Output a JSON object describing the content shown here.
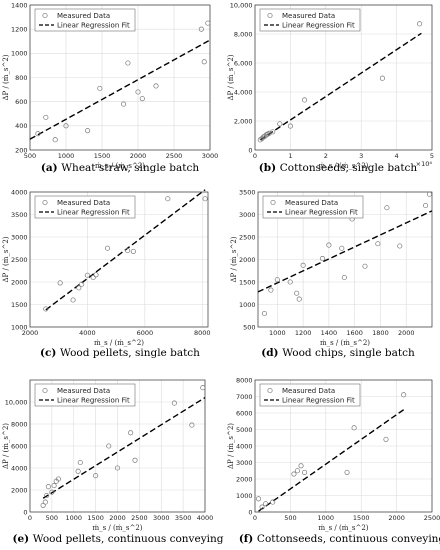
{
  "chart_data": [
    {
      "type": "scatter",
      "caption_tag": "(a)",
      "caption": "Wheat straw, single batch",
      "xlabel": "ṁ_s / (ṁ_s^2)",
      "ylabel": "ΔP / (ṁ_s^2)",
      "xlim": [
        500,
        3000
      ],
      "ylim": [
        200,
        1400
      ],
      "xticks": [
        "500",
        "1000",
        "1500",
        "2000",
        "2500",
        "3000"
      ],
      "yticks": [
        "200",
        "400",
        "600",
        "800",
        "1000",
        "1200",
        "1400"
      ],
      "xtick_vals": [
        500,
        1000,
        1500,
        2000,
        2500,
        3000
      ],
      "ytick_vals": [
        200,
        400,
        600,
        800,
        1000,
        1200,
        1400
      ],
      "exponent": "",
      "legend": {
        "measured": "Measured Data",
        "fit": "Linear Regression Fit"
      },
      "series": [
        {
          "name": "Measured Data",
          "x": [
            610,
            720,
            850,
            1000,
            1300,
            1470,
            1800,
            1860,
            2000,
            2060,
            2250,
            2880,
            2920,
            2970
          ],
          "y": [
            335,
            470,
            285,
            400,
            360,
            710,
            580,
            920,
            680,
            625,
            730,
            1200,
            930,
            1250
          ]
        },
        {
          "name": "Linear Regression Fit",
          "x": [
            500,
            3000
          ],
          "y": [
            290,
            1110
          ]
        }
      ]
    },
    {
      "type": "scatter",
      "caption_tag": "(b)",
      "caption": "Cottonseeds, single batch",
      "xlabel": "ṁ_s / (ṁ_s^2)",
      "ylabel": "ΔP / (ṁ_s^2)",
      "xlim": [
        0,
        50000
      ],
      "ylim": [
        0,
        10000
      ],
      "xticks": [
        "0",
        "1",
        "2",
        "3",
        "4",
        "5"
      ],
      "yticks": [
        "0",
        "2,000",
        "4,000",
        "6,000",
        "8,000",
        "10,000"
      ],
      "xtick_vals": [
        0,
        10000,
        20000,
        30000,
        40000,
        50000
      ],
      "ytick_vals": [
        0,
        2000,
        4000,
        6000,
        8000,
        10000
      ],
      "exponent": "×10⁴",
      "legend": {
        "measured": "Measured Data",
        "fit": "Linear Regression Fit"
      },
      "series": [
        {
          "name": "Measured Data",
          "x": [
            1500,
            2000,
            2400,
            2800,
            3200,
            3600,
            4000,
            5000,
            7000,
            10000,
            14000,
            36000,
            46500
          ],
          "y": [
            700,
            800,
            900,
            950,
            1050,
            1100,
            1150,
            1250,
            1800,
            1650,
            3450,
            4950,
            8700
          ]
        },
        {
          "name": "Linear Regression Fit",
          "x": [
            1500,
            47000
          ],
          "y": [
            700,
            8050
          ]
        }
      ]
    },
    {
      "type": "scatter",
      "caption_tag": "(c)",
      "caption": "Wood pellets, single batch",
      "xlabel": "ṁ_s / (ṁ_s^2)",
      "ylabel": "ΔP / (ṁ_s^2)",
      "xlim": [
        2000,
        8200
      ],
      "ylim": [
        1000,
        4000
      ],
      "xticks": [
        "2000",
        "4000",
        "6000",
        "8000"
      ],
      "yticks": [
        "1000",
        "1500",
        "2000",
        "2500",
        "3000",
        "3500",
        "4000"
      ],
      "xtick_vals": [
        2000,
        4000,
        6000,
        8000
      ],
      "ytick_vals": [
        1000,
        1500,
        2000,
        2500,
        3000,
        3500,
        4000
      ],
      "exponent": "",
      "legend": {
        "measured": "Measured Data",
        "fit": "Linear Regression Fit"
      },
      "series": [
        {
          "name": "Measured Data",
          "x": [
            2550,
            3050,
            3500,
            3700,
            3800,
            4000,
            4200,
            4300,
            4700,
            5400,
            5600,
            6800,
            8100
          ],
          "y": [
            1400,
            1980,
            1600,
            1870,
            1950,
            2150,
            2100,
            2160,
            2750,
            2700,
            2680,
            3850,
            3850
          ]
        },
        {
          "name": "Linear Regression Fit",
          "x": [
            2550,
            8100
          ],
          "y": [
            1380,
            4050
          ]
        }
      ]
    },
    {
      "type": "scatter",
      "caption_tag": "(d)",
      "caption": "Wood chips, single batch",
      "xlabel": "ṁ_s / (ṁ_s^2)",
      "ylabel": "ΔP / (ṁ_s^2)",
      "xlim": [
        850,
        2200
      ],
      "ylim": [
        500,
        3500
      ],
      "xticks": [
        "1000",
        "1200",
        "1400",
        "1600",
        "1800",
        "2000"
      ],
      "yticks": [
        "500",
        "1000",
        "1500",
        "2000",
        "2500",
        "3000",
        "3500"
      ],
      "xtick_vals": [
        1000,
        1200,
        1400,
        1600,
        1800,
        2000
      ],
      "ytick_vals": [
        500,
        1000,
        1500,
        2000,
        2500,
        3000,
        3500
      ],
      "exponent": "",
      "legend": {
        "measured": "Measured Data",
        "fit": "Linear Regression Fit"
      },
      "series": [
        {
          "name": "Measured Data",
          "x": [
            900,
            950,
            1000,
            1100,
            1150,
            1170,
            1200,
            1350,
            1400,
            1500,
            1520,
            1580,
            1680,
            1780,
            1850,
            1950,
            2150,
            2180
          ],
          "y": [
            800,
            1320,
            1550,
            1500,
            1250,
            1120,
            1870,
            2020,
            2320,
            2250,
            1600,
            2900,
            1850,
            2350,
            3150,
            2300,
            3200,
            3450
          ]
        },
        {
          "name": "Linear Regression Fit",
          "x": [
            850,
            2200
          ],
          "y": [
            1280,
            3080
          ]
        }
      ]
    },
    {
      "type": "scatter",
      "caption_tag": "(e)",
      "caption": "Wood pellets, continuous conveying",
      "xlabel": "ṁ_s / (ṁ_s^2)",
      "ylabel": "ΔP / (ṁ_s^2)",
      "xlim": [
        0,
        4000
      ],
      "ylim": [
        0,
        12000
      ],
      "xticks": [
        "0",
        "500",
        "1000",
        "1500",
        "2000",
        "2500",
        "3000",
        "3500",
        "4000"
      ],
      "yticks": [
        "0",
        "2000",
        "4000",
        "6000",
        "8000",
        "10,000"
      ],
      "xtick_vals": [
        0,
        500,
        1000,
        1500,
        2000,
        2500,
        3000,
        3500,
        4000
      ],
      "ytick_vals": [
        0,
        2000,
        4000,
        6000,
        8000,
        10000
      ],
      "exponent": "",
      "legend": {
        "measured": "Measured Data",
        "fit": "Linear Regression Fit"
      },
      "series": [
        {
          "name": "Measured Data",
          "x": [
            300,
            350,
            380,
            420,
            500,
            550,
            600,
            650,
            1100,
            1150,
            1500,
            1800,
            2000,
            2300,
            2400,
            3300,
            3700,
            3950
          ],
          "y": [
            600,
            900,
            1500,
            2300,
            1800,
            2400,
            2800,
            3000,
            3700,
            4500,
            3300,
            6000,
            4000,
            7200,
            4700,
            9900,
            7900,
            11300
          ]
        },
        {
          "name": "Linear Regression Fit",
          "x": [
            300,
            4000
          ],
          "y": [
            1250,
            10400
          ]
        }
      ]
    },
    {
      "type": "scatter",
      "caption_tag": "(f)",
      "caption": "Cottonseeds, continuous conveying",
      "xlabel": "ṁ_s / (ṁ_s^2)",
      "ylabel": "ΔP / (ṁ_s^2)",
      "xlim": [
        0,
        2500
      ],
      "ylim": [
        0,
        8000
      ],
      "xticks": [
        "0",
        "500",
        "1000",
        "1500",
        "2000",
        "2500"
      ],
      "yticks": [
        "0",
        "1000",
        "2000",
        "3000",
        "4000",
        "5000",
        "6000",
        "7000",
        "8000"
      ],
      "xtick_vals": [
        0,
        500,
        1000,
        1500,
        2000,
        2500
      ],
      "ytick_vals": [
        0,
        1000,
        2000,
        3000,
        4000,
        5000,
        6000,
        7000,
        8000
      ],
      "exponent": "",
      "legend": {
        "measured": "Measured Data",
        "fit": "Linear Regression Fit"
      },
      "series": [
        {
          "name": "Measured Data",
          "x": [
            50,
            100,
            150,
            250,
            550,
            600,
            650,
            700,
            1300,
            1400,
            1850,
            2100
          ],
          "y": [
            800,
            300,
            500,
            600,
            2300,
            2500,
            2800,
            2400,
            2400,
            5100,
            4400,
            7100
          ]
        },
        {
          "name": "Linear Regression Fit",
          "x": [
            50,
            2100
          ],
          "y": [
            50,
            6200
          ]
        }
      ]
    }
  ]
}
